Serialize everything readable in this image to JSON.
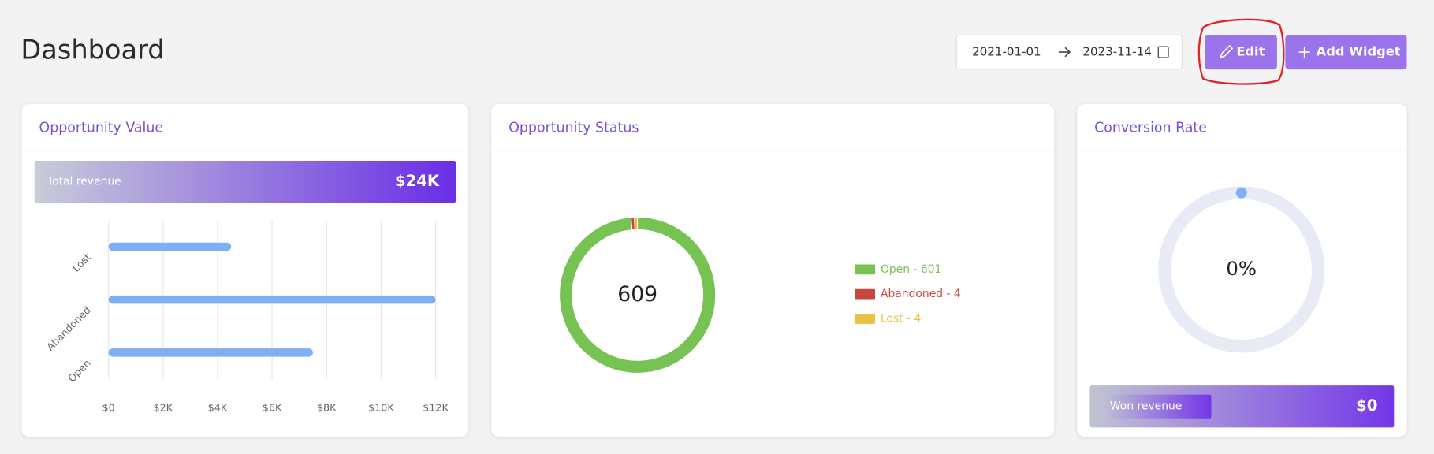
{
  "header": {
    "title": "Dashboard",
    "date_start": "2021-01-01",
    "date_end": "2023-11-14",
    "buttons": [
      "Edit",
      "Add Widget"
    ]
  },
  "chart_data": [
    {
      "type": "bar",
      "orientation": "horizontal",
      "title": "Opportunity Value",
      "summary": {
        "label": "Total revenue",
        "value": "$24K"
      },
      "categories": [
        "Lost",
        "Abandoned",
        "Open"
      ],
      "values": [
        4500,
        12000,
        7500
      ],
      "color": "#7eaef5",
      "xlim": [
        0,
        12000
      ],
      "xticks": [
        {
          "value": 0,
          "label": "$0"
        },
        {
          "value": 2000,
          "label": "$2K"
        },
        {
          "value": 4000,
          "label": "$4K"
        },
        {
          "value": 6000,
          "label": "$6K"
        },
        {
          "value": 8000,
          "label": "$8K"
        },
        {
          "value": 10000,
          "label": "$10K"
        },
        {
          "value": 12000,
          "label": "$12K"
        }
      ],
      "grid": true
    },
    {
      "type": "donut",
      "title": "Opportunity Status",
      "total": 609,
      "categories": [
        "Open",
        "Abandoned",
        "Lost"
      ],
      "values": [
        601,
        4,
        4
      ],
      "legend_labels": [
        "Open - 601",
        "Abandoned - 4",
        "Lost - 4"
      ],
      "colors": [
        "#76c353",
        "#c9463d",
        "#ecc040"
      ]
    },
    {
      "type": "gauge",
      "title": "Conversion Rate",
      "value": 0,
      "value_label": "0%",
      "ylim": [
        0,
        100
      ],
      "color": "#7eaef5",
      "track_color": "#e8eaf6",
      "summary": {
        "label": "Won revenue",
        "value": "$0"
      }
    }
  ]
}
